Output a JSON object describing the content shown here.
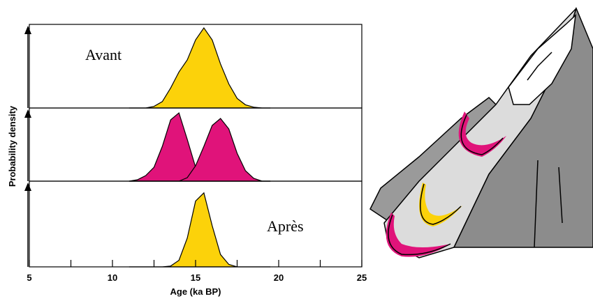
{
  "chart_data": [
    {
      "type": "area",
      "annotation": "Avant",
      "x": [
        11,
        11.5,
        12,
        12.5,
        13,
        13.5,
        14,
        14.5,
        15,
        15.5,
        16,
        16.5,
        17,
        17.5,
        18,
        18.5,
        19,
        19.5
      ],
      "series": [
        {
          "color": "#fcd20a",
          "values": [
            0,
            0,
            0,
            0.02,
            0.08,
            0.25,
            0.45,
            0.6,
            0.85,
            1.0,
            0.85,
            0.55,
            0.3,
            0.12,
            0.04,
            0.01,
            0,
            0
          ]
        }
      ],
      "ylim": [
        0,
        1
      ]
    },
    {
      "type": "area",
      "ylabel": "Probability density",
      "x": [
        11,
        11.5,
        12,
        12.5,
        13,
        13.5,
        14,
        14.5,
        15,
        15.5,
        16,
        16.5,
        17,
        17.5,
        18,
        18.5,
        19,
        19.5
      ],
      "series": [
        {
          "color": "#e0137a",
          "values": [
            0,
            0.02,
            0.08,
            0.2,
            0.5,
            0.88,
            0.98,
            0.6,
            0.2,
            0.04,
            0,
            0,
            0,
            0,
            0,
            0,
            0,
            0
          ]
        },
        {
          "color": "#e0137a",
          "values": [
            0,
            0,
            0,
            0,
            0,
            0,
            0,
            0.05,
            0.22,
            0.5,
            0.8,
            0.9,
            0.75,
            0.4,
            0.15,
            0.04,
            0,
            0
          ]
        }
      ],
      "ylim": [
        0,
        1
      ]
    },
    {
      "type": "area",
      "annotation": "Après",
      "xlabel": "Age (ka BP)",
      "x": [
        11,
        11.5,
        12,
        12.5,
        13,
        13.5,
        14,
        14.5,
        15,
        15.5,
        16,
        16.5,
        17,
        17.5,
        18,
        18.5,
        19,
        19.5
      ],
      "series": [
        {
          "color": "#fcd20a",
          "values": [
            0,
            0,
            0,
            0,
            0,
            0.01,
            0.08,
            0.35,
            0.8,
            0.9,
            0.5,
            0.15,
            0.03,
            0,
            0,
            0,
            0,
            0
          ]
        }
      ],
      "ylim": [
        0,
        1
      ],
      "xlim": [
        5,
        25
      ],
      "xticks": [
        5,
        10,
        15,
        20,
        25
      ],
      "xminor": [
        7.5,
        12.5,
        17.5,
        22.5
      ]
    }
  ]
}
